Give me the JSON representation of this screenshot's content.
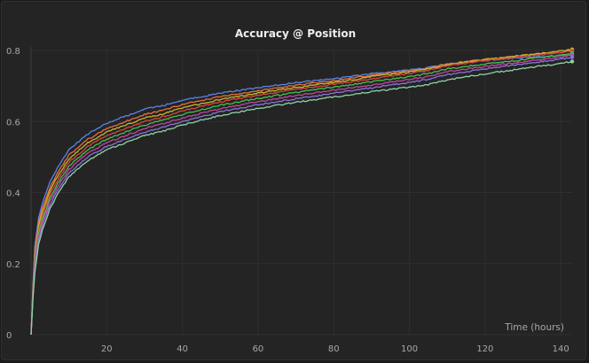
{
  "chart_data": {
    "type": "line",
    "title": "Accuracy @ Position",
    "xlabel": "Time (hours)",
    "ylabel": "",
    "xlim": [
      0,
      143
    ],
    "ylim": [
      0,
      0.8
    ],
    "x_ticks": [
      20,
      40,
      60,
      80,
      100,
      120,
      140
    ],
    "y_ticks": [
      0,
      0.2,
      0.4,
      0.6,
      0.8
    ],
    "grid": true,
    "legend": "none",
    "x": [
      0,
      0.5,
      1,
      2,
      3,
      5,
      7,
      10,
      15,
      20,
      25,
      30,
      35,
      40,
      50,
      60,
      70,
      80,
      90,
      100,
      105,
      110,
      120,
      130,
      140,
      143
    ],
    "series": [
      {
        "color": "#5a84e8",
        "values": [
          0,
          0.14,
          0.25,
          0.33,
          0.37,
          0.43,
          0.47,
          0.52,
          0.565,
          0.595,
          0.615,
          0.635,
          0.645,
          0.66,
          0.68,
          0.695,
          0.71,
          0.72,
          0.735,
          0.745,
          0.752,
          0.762,
          0.772,
          0.78,
          0.786,
          0.788
        ]
      },
      {
        "color": "#e8713a",
        "values": [
          0,
          0.13,
          0.235,
          0.315,
          0.355,
          0.415,
          0.455,
          0.505,
          0.55,
          0.58,
          0.6,
          0.62,
          0.632,
          0.648,
          0.67,
          0.686,
          0.702,
          0.715,
          0.73,
          0.742,
          0.75,
          0.762,
          0.775,
          0.785,
          0.795,
          0.8
        ]
      },
      {
        "color": "#c9b630",
        "values": [
          0,
          0.125,
          0.225,
          0.305,
          0.345,
          0.405,
          0.445,
          0.495,
          0.54,
          0.57,
          0.59,
          0.61,
          0.622,
          0.638,
          0.662,
          0.68,
          0.696,
          0.71,
          0.726,
          0.74,
          0.748,
          0.76,
          0.774,
          0.786,
          0.798,
          0.803
        ]
      },
      {
        "color": "#d94545",
        "values": [
          0,
          0.12,
          0.215,
          0.295,
          0.335,
          0.395,
          0.435,
          0.485,
          0.53,
          0.56,
          0.58,
          0.6,
          0.614,
          0.63,
          0.655,
          0.674,
          0.69,
          0.705,
          0.72,
          0.735,
          0.744,
          0.757,
          0.771,
          0.783,
          0.794,
          0.799
        ]
      },
      {
        "color": "#45c24a",
        "values": [
          0,
          0.115,
          0.205,
          0.285,
          0.325,
          0.385,
          0.425,
          0.475,
          0.52,
          0.55,
          0.57,
          0.59,
          0.605,
          0.62,
          0.646,
          0.665,
          0.682,
          0.697,
          0.712,
          0.726,
          0.735,
          0.748,
          0.762,
          0.774,
          0.787,
          0.792
        ]
      },
      {
        "color": "#c4459e",
        "values": [
          0,
          0.11,
          0.195,
          0.275,
          0.315,
          0.375,
          0.415,
          0.465,
          0.51,
          0.54,
          0.56,
          0.58,
          0.594,
          0.61,
          0.636,
          0.656,
          0.673,
          0.688,
          0.703,
          0.718,
          0.727,
          0.74,
          0.755,
          0.768,
          0.781,
          0.786
        ]
      },
      {
        "color": "#8a72dd",
        "values": [
          0,
          0.105,
          0.185,
          0.265,
          0.305,
          0.365,
          0.405,
          0.455,
          0.5,
          0.53,
          0.55,
          0.57,
          0.584,
          0.6,
          0.627,
          0.647,
          0.664,
          0.679,
          0.695,
          0.71,
          0.719,
          0.732,
          0.748,
          0.762,
          0.776,
          0.781
        ]
      },
      {
        "color": "#8fd3a6",
        "values": [
          0,
          0.1,
          0.175,
          0.255,
          0.295,
          0.355,
          0.395,
          0.445,
          0.49,
          0.52,
          0.54,
          0.56,
          0.573,
          0.59,
          0.617,
          0.637,
          0.654,
          0.669,
          0.684,
          0.697,
          0.704,
          0.717,
          0.734,
          0.749,
          0.764,
          0.769
        ]
      }
    ]
  }
}
